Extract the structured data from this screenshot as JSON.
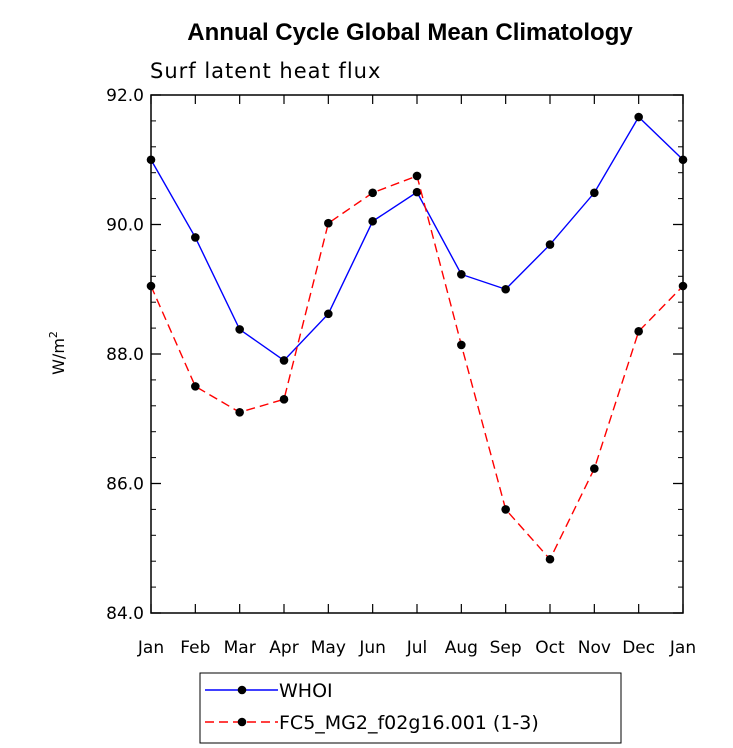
{
  "chart_data": {
    "type": "line",
    "title": "Annual Cycle Global Mean Climatology",
    "subtitle": "Surf latent heat flux",
    "ylabel": "W/m",
    "ylabel_sup": "2",
    "xlabel": "",
    "categories": [
      "Jan",
      "Feb",
      "Mar",
      "Apr",
      "May",
      "Jun",
      "Jul",
      "Aug",
      "Sep",
      "Oct",
      "Nov",
      "Dec",
      "Jan"
    ],
    "ylim": [
      84.0,
      92.0
    ],
    "yticks": [
      "84.0",
      "86.0",
      "88.0",
      "90.0",
      "92.0"
    ],
    "series": [
      {
        "name": "WHOI",
        "color": "#0000ff",
        "dash": "solid",
        "values": [
          91.0,
          89.8,
          88.38,
          87.9,
          88.62,
          90.05,
          90.5,
          89.23,
          89.0,
          89.69,
          90.49,
          91.66,
          91.0
        ]
      },
      {
        "name": "FC5_MG2_f02g16.001 (1-3)",
        "color": "#ff0000",
        "dash": "dashed",
        "values": [
          89.05,
          87.5,
          87.1,
          87.3,
          90.02,
          90.49,
          90.75,
          88.14,
          85.6,
          84.83,
          86.23,
          88.35,
          89.05
        ]
      }
    ],
    "legend_position": "bottom"
  }
}
